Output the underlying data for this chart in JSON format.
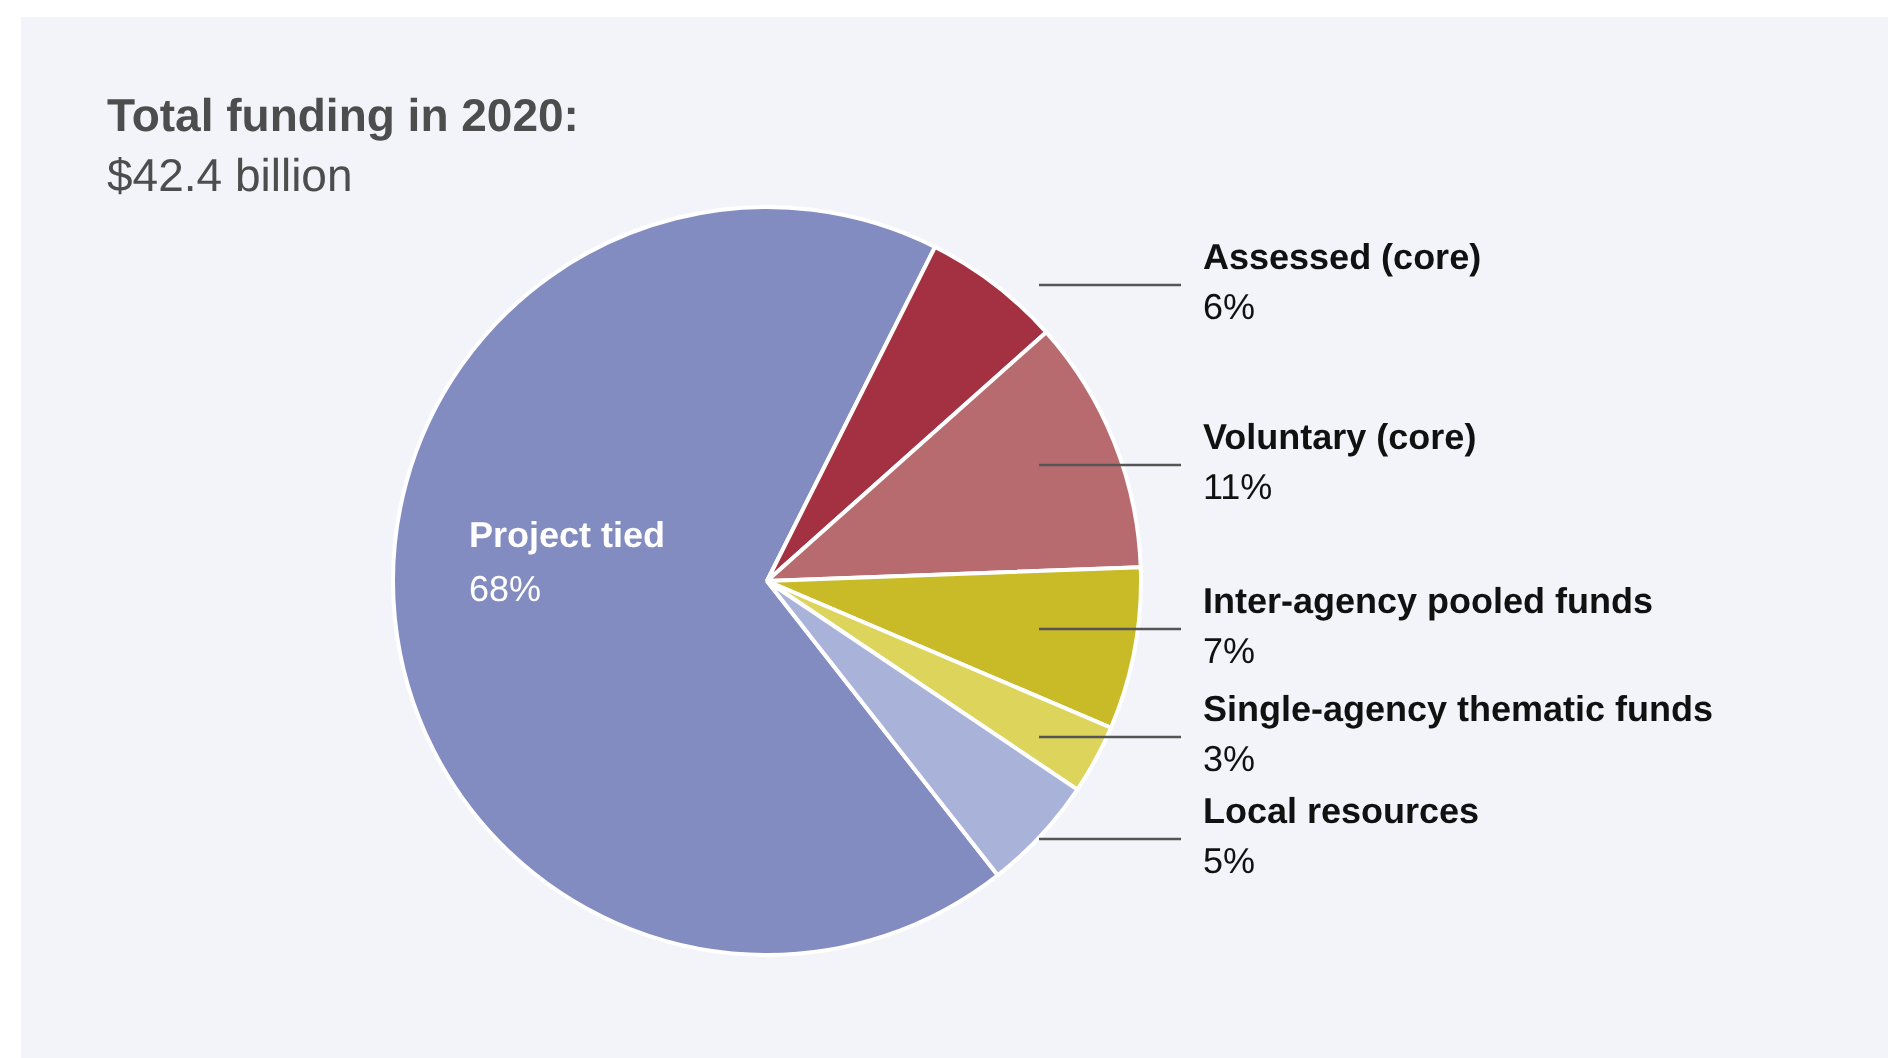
{
  "chart_data": {
    "type": "pie",
    "title": "Total funding in 2020:",
    "subtitle": "$42.4 billion",
    "categories": [
      "Project tied",
      "Assessed (core)",
      "Voluntary (core)",
      "Inter-agency pooled funds",
      "Single-agency thematic funds",
      "Local resources"
    ],
    "values": [
      68,
      6,
      11,
      7,
      3,
      5
    ],
    "value_labels": [
      "68%",
      "6%",
      "11%",
      "7%",
      "3%",
      "5%"
    ],
    "colors": [
      "#838cc1",
      "#a33142",
      "#b86b6e",
      "#c8bb27",
      "#dcd45b",
      "#a9b3da"
    ]
  }
}
